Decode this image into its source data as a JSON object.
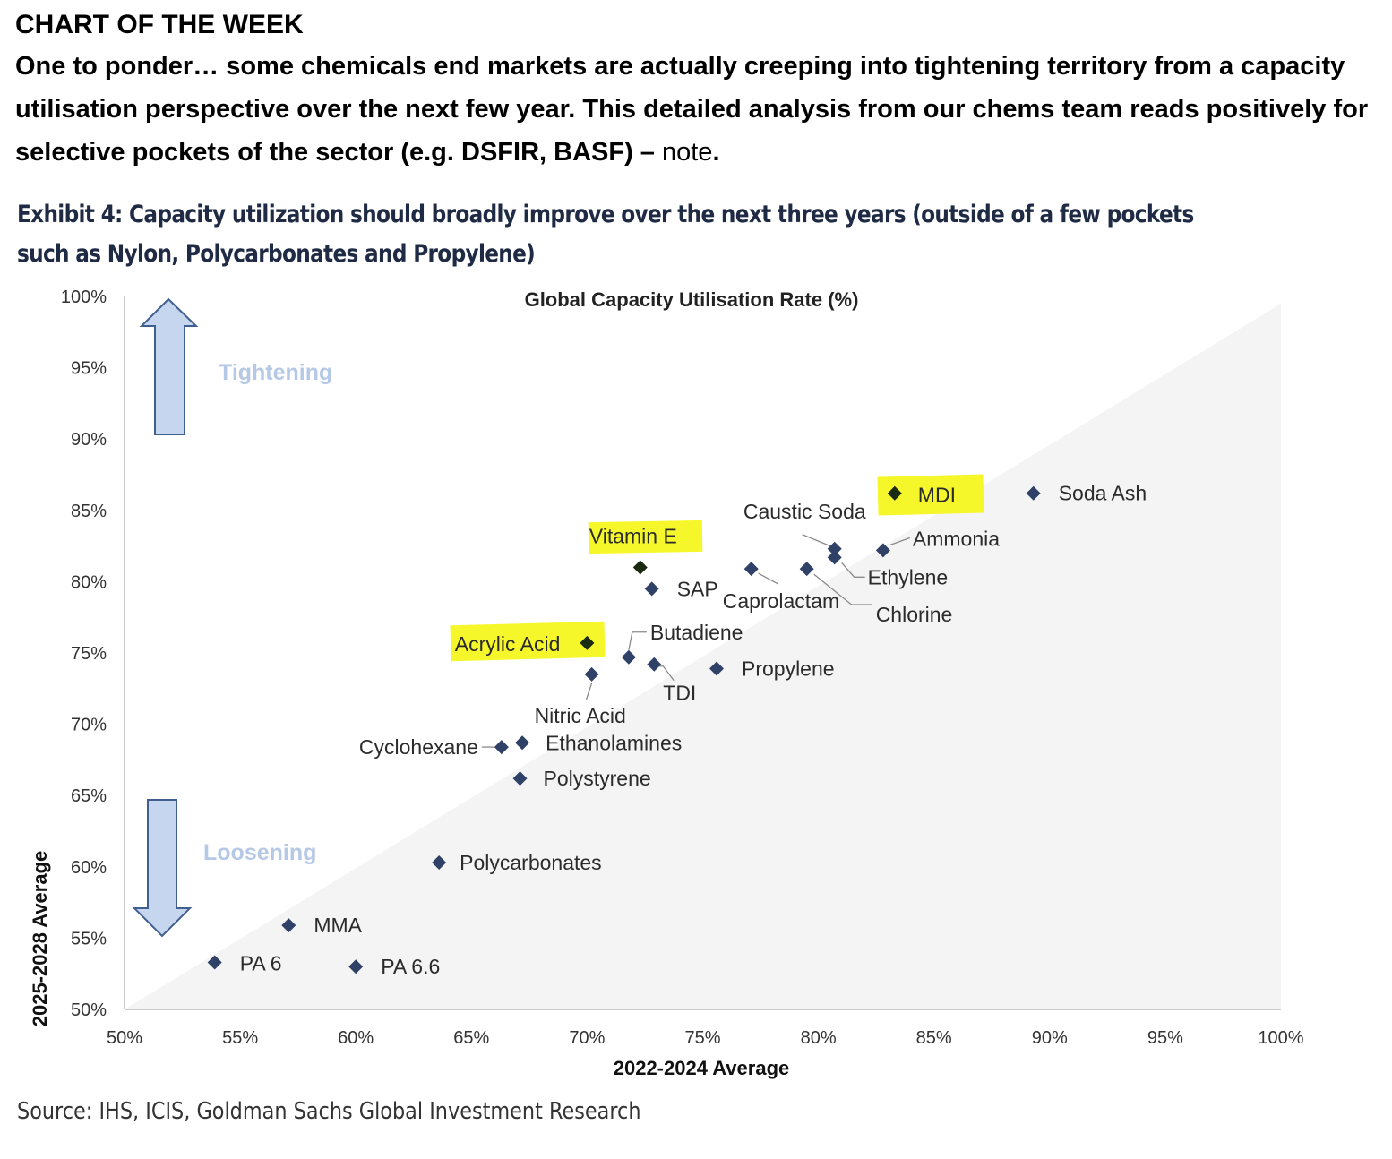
{
  "header": {
    "kicker": "CHART OF THE WEEK",
    "intro_bold": "One to ponder… some chemicals end markets are actually creeping into tightening territory from a capacity utilisation perspective over the next few year. This detailed analysis from our chems team reads positively for selective pockets of the sector (e.g. DSFIR, BASF) –",
    "intro_link": "note",
    "intro_end": "."
  },
  "exhibit": {
    "line1": "Exhibit 4: Capacity utilization should broadly improve over the next three years (outside of a few pockets",
    "line2": "such as Nylon, Polycarbonates and Propylene)"
  },
  "source": "Source: IHS, ICIS, Goldman Sachs Global Investment Research",
  "colors": {
    "marker": "#2f4166",
    "marker_highlight": "#1b2b12",
    "highlight": "#f6f72a",
    "arrow_fill": "#c5d6ee",
    "arrow_stroke": "#3f5f8f",
    "annotation_text": "#b5c8e6",
    "triangle": "#f4f4f4"
  },
  "chart_data": {
    "type": "scatter",
    "title": "Global  Capacity  Utilisation  Rate  (%)",
    "xlabel": "2022-2024 Average",
    "ylabel": "2025-2028 Average",
    "xlim": [
      50,
      100
    ],
    "ylim": [
      50,
      100
    ],
    "xticks": [
      50,
      55,
      60,
      65,
      70,
      75,
      80,
      85,
      90,
      95,
      100
    ],
    "yticks": [
      50,
      55,
      60,
      65,
      70,
      75,
      80,
      85,
      90,
      95,
      100
    ],
    "tick_format": "%",
    "grid": false,
    "annotations": [
      {
        "label": "Tightening",
        "arrow": "up"
      },
      {
        "label": "Loosening",
        "arrow": "down"
      }
    ],
    "points": [
      {
        "label": "MDI",
        "x": 83.3,
        "y": 86.2,
        "highlight": true
      },
      {
        "label": "Soda Ash",
        "x": 89.3,
        "y": 86.2
      },
      {
        "label": "Caustic Soda",
        "x": 80.7,
        "y": 82.3
      },
      {
        "label": "Ammonia",
        "x": 82.8,
        "y": 82.2
      },
      {
        "label": "Ethylene",
        "x": 80.7,
        "y": 81.7
      },
      {
        "label": "Chlorine",
        "x": 79.5,
        "y": 80.9
      },
      {
        "label": "Caprolactam",
        "x": 77.1,
        "y": 80.9
      },
      {
        "label": "Vitamin E",
        "x": 72.3,
        "y": 81.0,
        "highlight": true
      },
      {
        "label": "SAP",
        "x": 72.8,
        "y": 79.5
      },
      {
        "label": "Acrylic Acid",
        "x": 70.0,
        "y": 75.7,
        "highlight": true
      },
      {
        "label": "Butadiene",
        "x": 71.8,
        "y": 74.7
      },
      {
        "label": "TDI",
        "x": 72.9,
        "y": 74.2
      },
      {
        "label": "Propylene",
        "x": 75.6,
        "y": 73.9
      },
      {
        "label": "Nitric Acid",
        "x": 70.2,
        "y": 73.5
      },
      {
        "label": "Cyclohexane",
        "x": 66.3,
        "y": 68.4
      },
      {
        "label": "Ethanolamines",
        "x": 67.2,
        "y": 68.7
      },
      {
        "label": "Polystyrene",
        "x": 67.1,
        "y": 66.2
      },
      {
        "label": "Polycarbonates",
        "x": 63.6,
        "y": 60.3
      },
      {
        "label": "MMA",
        "x": 57.1,
        "y": 55.9
      },
      {
        "label": "PA 6",
        "x": 53.9,
        "y": 53.3
      },
      {
        "label": "PA 6.6",
        "x": 60.0,
        "y": 53.0
      }
    ]
  }
}
